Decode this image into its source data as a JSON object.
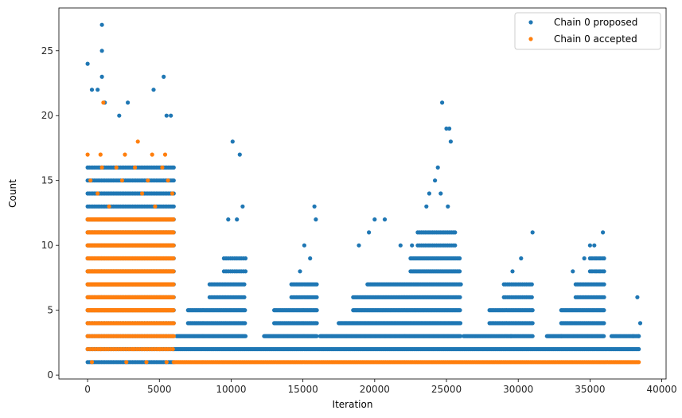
{
  "chart_data": {
    "type": "scatter",
    "title": "",
    "xlabel": "Iteration",
    "ylabel": "Count",
    "xlim": [
      -2000,
      40300
    ],
    "ylim": [
      -0.3,
      28.3
    ],
    "xticks": [
      0,
      5000,
      10000,
      15000,
      20000,
      25000,
      30000,
      35000,
      40000
    ],
    "xtick_labels": [
      "0",
      "5000",
      "10000",
      "15000",
      "20000",
      "25000",
      "30000",
      "35000",
      "40000"
    ],
    "yticks": [
      0,
      5,
      10,
      15,
      20,
      25
    ],
    "ytick_labels": [
      "0",
      "5",
      "10",
      "15",
      "20",
      "25"
    ],
    "grid": false,
    "legend_position": "top-right",
    "series": [
      {
        "name": "Chain 0 proposed",
        "color": "#1f77b4",
        "points": [
          [
            0,
            24
          ],
          [
            1000,
            27
          ],
          [
            1000,
            25
          ],
          [
            1000,
            23
          ],
          [
            4600,
            22
          ],
          [
            5300,
            23
          ],
          [
            5800,
            20
          ],
          [
            5500,
            20
          ],
          [
            300,
            22
          ],
          [
            700,
            22
          ],
          [
            1200,
            21
          ],
          [
            2800,
            21
          ],
          [
            2200,
            20
          ],
          [
            10100,
            18
          ],
          [
            10600,
            17
          ],
          [
            10800,
            13
          ],
          [
            9800,
            12
          ],
          [
            10400,
            12
          ],
          [
            15800,
            13
          ],
          [
            15900,
            12
          ],
          [
            15100,
            10
          ],
          [
            15500,
            9
          ],
          [
            14800,
            8
          ],
          [
            24700,
            21
          ],
          [
            25000,
            19
          ],
          [
            25200,
            19
          ],
          [
            25300,
            18
          ],
          [
            24400,
            16
          ],
          [
            24200,
            15
          ],
          [
            23800,
            14
          ],
          [
            23600,
            13
          ],
          [
            24600,
            14
          ],
          [
            25100,
            13
          ],
          [
            20000,
            12
          ],
          [
            20700,
            12
          ],
          [
            19600,
            11
          ],
          [
            18900,
            10
          ],
          [
            22600,
            10
          ],
          [
            21800,
            10
          ],
          [
            31000,
            11
          ],
          [
            30200,
            9
          ],
          [
            29600,
            8
          ],
          [
            35900,
            11
          ],
          [
            35000,
            10
          ],
          [
            35300,
            10
          ],
          [
            34600,
            9
          ],
          [
            33800,
            8
          ],
          [
            38300,
            6
          ],
          [
            38500,
            4
          ],
          [
            38000,
            3
          ],
          [
            38400,
            3
          ],
          [
            29500,
            3
          ],
          [
            33000,
            3
          ]
        ],
        "dense_blocks": [
          {
            "x_range": [
              0,
              6000
            ],
            "y_min": 1,
            "y_max": 16,
            "dx": 120
          },
          {
            "x_range": [
              6000,
              38400
            ],
            "y_min": 2,
            "y_max": 2,
            "dx": 90
          },
          {
            "x_range": [
              6200,
              11000
            ],
            "y_min": 3,
            "y_max": 3,
            "dx": 60
          },
          {
            "x_range": [
              7000,
              11000
            ],
            "y_min": 4,
            "y_max": 5,
            "dx": 90
          },
          {
            "x_range": [
              8500,
              11000
            ],
            "y_min": 6,
            "y_max": 7,
            "dx": 110
          },
          {
            "x_range": [
              9500,
              11000
            ],
            "y_min": 8,
            "y_max": 9,
            "dx": 150
          },
          {
            "x_range": [
              12300,
              16000
            ],
            "y_min": 3,
            "y_max": 3,
            "dx": 60
          },
          {
            "x_range": [
              13000,
              16000
            ],
            "y_min": 4,
            "y_max": 5,
            "dx": 90
          },
          {
            "x_range": [
              14200,
              16000
            ],
            "y_min": 6,
            "y_max": 7,
            "dx": 110
          },
          {
            "x_range": [
              16200,
              26000
            ],
            "y_min": 3,
            "y_max": 3,
            "dx": 60
          },
          {
            "x_range": [
              17500,
              26000
            ],
            "y_min": 4,
            "y_max": 4,
            "dx": 70
          },
          {
            "x_range": [
              18500,
              26000
            ],
            "y_min": 5,
            "y_max": 6,
            "dx": 80
          },
          {
            "x_range": [
              19500,
              26000
            ],
            "y_min": 7,
            "y_max": 7,
            "dx": 100
          },
          {
            "x_range": [
              22500,
              26000
            ],
            "y_min": 8,
            "y_max": 9,
            "dx": 90
          },
          {
            "x_range": [
              23000,
              25600
            ],
            "y_min": 10,
            "y_max": 11,
            "dx": 130
          },
          {
            "x_range": [
              26200,
              31000
            ],
            "y_min": 3,
            "y_max": 3,
            "dx": 80
          },
          {
            "x_range": [
              28000,
              31000
            ],
            "y_min": 4,
            "y_max": 5,
            "dx": 100
          },
          {
            "x_range": [
              29000,
              31000
            ],
            "y_min": 6,
            "y_max": 7,
            "dx": 130
          },
          {
            "x_range": [
              32000,
              36000
            ],
            "y_min": 3,
            "y_max": 3,
            "dx": 60
          },
          {
            "x_range": [
              33000,
              36000
            ],
            "y_min": 4,
            "y_max": 5,
            "dx": 90
          },
          {
            "x_range": [
              34000,
              36000
            ],
            "y_min": 6,
            "y_max": 7,
            "dx": 110
          },
          {
            "x_range": [
              35000,
              36000
            ],
            "y_min": 8,
            "y_max": 9,
            "dx": 140
          },
          {
            "x_range": [
              36500,
              38400
            ],
            "y_min": 3,
            "y_max": 3,
            "dx": 90
          }
        ]
      },
      {
        "name": "Chain 0 accepted",
        "color": "#ff7f0e",
        "points": [
          [
            1100,
            21
          ],
          [
            0,
            17
          ],
          [
            900,
            17
          ],
          [
            2600,
            17
          ],
          [
            4500,
            17
          ],
          [
            5400,
            17
          ],
          [
            3500,
            18
          ],
          [
            1000,
            16
          ],
          [
            2000,
            16
          ],
          [
            3300,
            16
          ],
          [
            5200,
            16
          ],
          [
            200,
            15
          ],
          [
            2400,
            15
          ],
          [
            4200,
            15
          ],
          [
            5600,
            15
          ],
          [
            700,
            14
          ],
          [
            3800,
            14
          ],
          [
            5900,
            14
          ],
          [
            1500,
            13
          ],
          [
            4700,
            13
          ],
          [
            300,
            1
          ],
          [
            2700,
            1
          ],
          [
            4100,
            1
          ],
          [
            5500,
            1
          ],
          [
            900,
            2
          ],
          [
            3200,
            2
          ],
          [
            5000,
            2
          ]
        ],
        "dense_blocks": [
          {
            "x_range": [
              0,
              6000
            ],
            "y_min": 2,
            "y_max": 2,
            "dx": 180
          },
          {
            "x_range": [
              0,
              6000
            ],
            "y_min": 3,
            "y_max": 4,
            "dx": 120
          },
          {
            "x_range": [
              0,
              6000
            ],
            "y_min": 5,
            "y_max": 12,
            "dx": 45
          },
          {
            "x_range": [
              6000,
              38400
            ],
            "y_min": 1,
            "y_max": 1,
            "dx": 90
          }
        ]
      }
    ]
  }
}
